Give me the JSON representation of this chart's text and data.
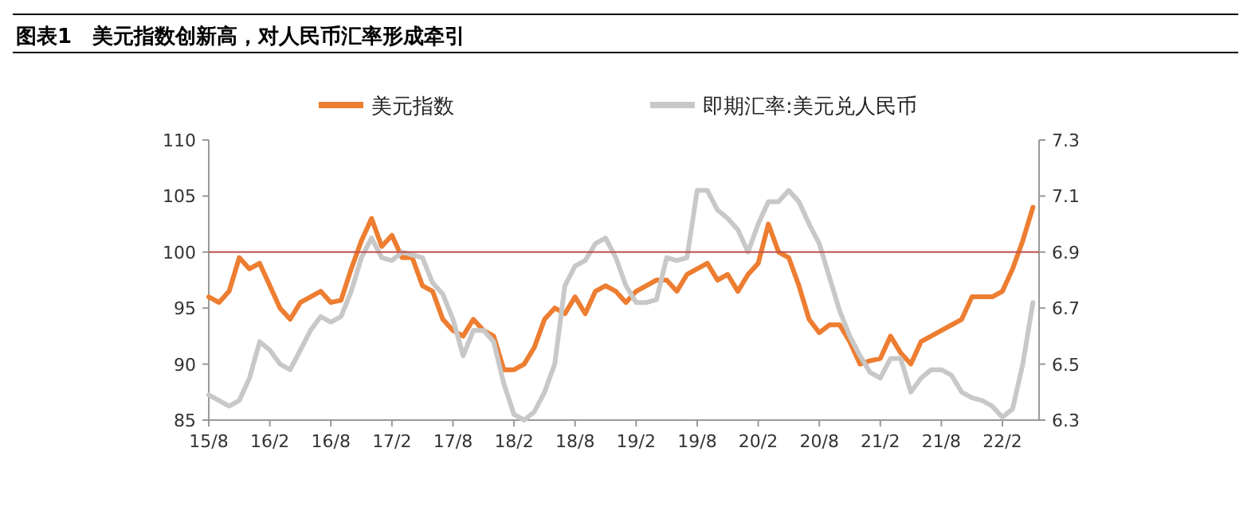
{
  "chart_data": {
    "type": "line",
    "title": "图表1　美元指数创新高，对人民币汇率形成牵引",
    "categories": [
      "15/8",
      null,
      null,
      null,
      null,
      null,
      "16/2",
      null,
      null,
      null,
      null,
      null,
      "16/8",
      null,
      null,
      null,
      null,
      null,
      "17/2",
      null,
      null,
      null,
      null,
      null,
      "17/8",
      null,
      null,
      null,
      null,
      null,
      "18/2",
      null,
      null,
      null,
      null,
      null,
      "18/8",
      null,
      null,
      null,
      null,
      null,
      "19/2",
      null,
      null,
      null,
      null,
      null,
      "19/8",
      null,
      null,
      null,
      null,
      null,
      "20/2",
      null,
      null,
      null,
      null,
      null,
      "20/8",
      null,
      null,
      null,
      null,
      null,
      "21/2",
      null,
      null,
      null,
      null,
      null,
      "21/8",
      null,
      null,
      null,
      null,
      null,
      "22/2",
      null,
      null,
      null
    ],
    "series": [
      {
        "name": "美元指数",
        "color": "#ed7d31",
        "values": [
          96,
          95.5,
          96.5,
          99.5,
          98.5,
          99,
          97,
          95,
          94,
          95.5,
          96,
          96.5,
          95.5,
          95.7,
          98.5,
          101,
          103,
          100.5,
          101.5,
          99.5,
          99.5,
          97,
          96.5,
          94,
          93,
          92.5,
          94,
          93,
          92.5,
          89.5,
          89.5,
          90,
          91.5,
          94,
          95,
          94.5,
          96,
          94.5,
          96.5,
          97,
          96.5,
          95.5,
          96.5,
          97,
          97.5,
          97.5,
          96.5,
          98,
          98.5,
          99,
          97.5,
          98,
          96.5,
          98,
          99,
          102.5,
          100,
          99.5,
          97,
          94,
          92.8,
          93.5,
          93.5,
          92,
          90,
          90.3,
          90.5,
          92.5,
          91,
          90,
          92,
          92.5,
          93,
          93.5,
          94,
          96,
          96,
          96,
          96.5,
          98.5,
          101,
          104
        ]
      },
      {
        "name": "即期汇率:美元兑人民币",
        "color": "#c8c8c8",
        "axis": "y2",
        "values": [
          6.39,
          6.37,
          6.35,
          6.37,
          6.45,
          6.58,
          6.55,
          6.5,
          6.48,
          6.55,
          6.62,
          6.67,
          6.65,
          6.67,
          6.76,
          6.88,
          6.95,
          6.88,
          6.87,
          6.9,
          6.89,
          6.88,
          6.79,
          6.75,
          6.66,
          6.53,
          6.62,
          6.62,
          6.58,
          6.43,
          6.32,
          6.3,
          6.33,
          6.4,
          6.5,
          6.78,
          6.85,
          6.87,
          6.93,
          6.95,
          6.88,
          6.78,
          6.72,
          6.72,
          6.73,
          6.88,
          6.87,
          6.88,
          7.12,
          7.12,
          7.05,
          7.02,
          6.98,
          6.9,
          7,
          7.08,
          7.08,
          7.12,
          7.08,
          7,
          6.93,
          6.81,
          6.69,
          6.6,
          6.53,
          6.47,
          6.45,
          6.52,
          6.52,
          6.4,
          6.45,
          6.48,
          6.48,
          6.46,
          6.4,
          6.38,
          6.37,
          6.35,
          6.31,
          6.34,
          6.5,
          6.72
        ]
      }
    ],
    "ylim": [
      85,
      110
    ],
    "yticks": [
      85,
      90,
      95,
      100,
      105,
      110
    ],
    "y2lim": [
      6.3,
      7.3
    ],
    "y2ticks": [
      {
        "value": 6.3,
        "label": "6.3"
      },
      {
        "value": 6.5,
        "label": "6.5"
      },
      {
        "value": 6.7,
        "label": "6.7"
      },
      {
        "value": 6.9,
        "label": "6.9"
      },
      {
        "value": 7.1,
        "label": "7.1"
      },
      {
        "value": 7.3,
        "label": "7.3"
      }
    ],
    "ref_lines": [
      {
        "axis": "y",
        "value": 100,
        "color": "#c0504d"
      }
    ],
    "legend": "top",
    "grid": false,
    "marker": "none",
    "line_style": "solid"
  }
}
